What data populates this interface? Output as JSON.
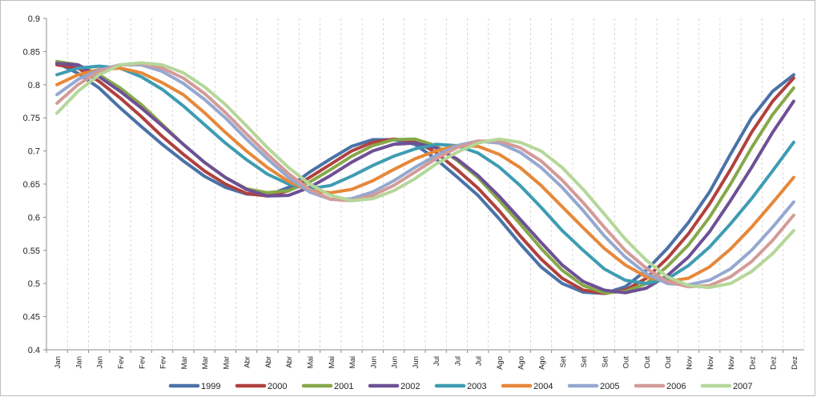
{
  "chart_data": {
    "type": "line",
    "title": "",
    "xlabel": "",
    "ylabel": "",
    "ylim": [
      0.4,
      0.9
    ],
    "yticks": [
      "0.4",
      "0.45",
      "0.5",
      "0.55",
      "0.6",
      "0.65",
      "0.7",
      "0.75",
      "0.8",
      "0.85",
      "0.9"
    ],
    "grid": "vertical dashed",
    "legend_position": "bottom",
    "categories": [
      "Jan",
      "Jan",
      "Jan",
      "Fev",
      "Fev",
      "Fev",
      "Mar",
      "Mar",
      "Mar",
      "Abr",
      "Abr",
      "Abr",
      "Mai",
      "Mai",
      "Mai",
      "Jun",
      "Jun",
      "Jun",
      "Jul",
      "Jul",
      "Jul",
      "Ago",
      "Ago",
      "Ago",
      "Set",
      "Set",
      "Set",
      "Out",
      "Out",
      "Out",
      "Nov",
      "Nov",
      "Nov",
      "Dez",
      "Dez",
      "Dez"
    ],
    "series": [
      {
        "name": "1999",
        "color": "#4a72a8",
        "values": [
          0.833,
          0.817,
          0.795,
          0.765,
          0.737,
          0.71,
          0.685,
          0.662,
          0.645,
          0.635,
          0.633,
          0.645,
          0.668,
          0.688,
          0.707,
          0.717,
          0.717,
          0.71,
          0.688,
          0.661,
          0.633,
          0.598,
          0.56,
          0.525,
          0.5,
          0.487,
          0.485,
          0.495,
          0.52,
          0.553,
          0.592,
          0.638,
          0.695,
          0.75,
          0.79,
          0.815
        ]
      },
      {
        "name": "2000",
        "color": "#b0413e",
        "values": [
          0.83,
          0.825,
          0.805,
          0.78,
          0.752,
          0.722,
          0.695,
          0.67,
          0.65,
          0.636,
          0.632,
          0.64,
          0.66,
          0.68,
          0.7,
          0.713,
          0.718,
          0.715,
          0.698,
          0.672,
          0.644,
          0.61,
          0.572,
          0.537,
          0.508,
          0.49,
          0.485,
          0.49,
          0.508,
          0.538,
          0.575,
          0.62,
          0.672,
          0.728,
          0.775,
          0.81
        ]
      },
      {
        "name": "2001",
        "color": "#86a84a",
        "values": [
          0.835,
          0.83,
          0.815,
          0.795,
          0.77,
          0.74,
          0.71,
          0.683,
          0.66,
          0.643,
          0.637,
          0.64,
          0.653,
          0.672,
          0.692,
          0.708,
          0.717,
          0.718,
          0.708,
          0.686,
          0.66,
          0.626,
          0.59,
          0.553,
          0.52,
          0.497,
          0.486,
          0.488,
          0.5,
          0.526,
          0.558,
          0.6,
          0.65,
          0.705,
          0.755,
          0.795
        ]
      },
      {
        "name": "2002",
        "color": "#6e5095",
        "values": [
          0.832,
          0.83,
          0.812,
          0.79,
          0.765,
          0.738,
          0.71,
          0.683,
          0.66,
          0.642,
          0.632,
          0.633,
          0.645,
          0.663,
          0.683,
          0.7,
          0.71,
          0.712,
          0.705,
          0.688,
          0.663,
          0.632,
          0.597,
          0.562,
          0.528,
          0.503,
          0.49,
          0.486,
          0.493,
          0.512,
          0.54,
          0.578,
          0.625,
          0.675,
          0.728,
          0.775
        ]
      },
      {
        "name": "2003",
        "color": "#3e9cb2",
        "values": [
          0.815,
          0.825,
          0.828,
          0.825,
          0.812,
          0.793,
          0.768,
          0.74,
          0.712,
          0.687,
          0.665,
          0.65,
          0.643,
          0.648,
          0.662,
          0.678,
          0.692,
          0.703,
          0.71,
          0.708,
          0.697,
          0.676,
          0.648,
          0.615,
          0.58,
          0.55,
          0.522,
          0.505,
          0.5,
          0.507,
          0.527,
          0.555,
          0.59,
          0.628,
          0.67,
          0.713
        ]
      },
      {
        "name": "2004",
        "color": "#e6883a",
        "values": [
          0.8,
          0.815,
          0.823,
          0.825,
          0.818,
          0.803,
          0.785,
          0.758,
          0.728,
          0.7,
          0.675,
          0.654,
          0.64,
          0.637,
          0.642,
          0.655,
          0.672,
          0.688,
          0.7,
          0.708,
          0.707,
          0.695,
          0.675,
          0.648,
          0.616,
          0.584,
          0.553,
          0.528,
          0.51,
          0.503,
          0.508,
          0.525,
          0.552,
          0.585,
          0.622,
          0.66
        ]
      },
      {
        "name": "2005",
        "color": "#95a8d0",
        "values": [
          0.785,
          0.808,
          0.822,
          0.83,
          0.83,
          0.82,
          0.802,
          0.778,
          0.75,
          0.718,
          0.688,
          0.66,
          0.638,
          0.627,
          0.628,
          0.638,
          0.655,
          0.675,
          0.693,
          0.708,
          0.715,
          0.712,
          0.698,
          0.675,
          0.645,
          0.61,
          0.572,
          0.54,
          0.515,
          0.5,
          0.498,
          0.505,
          0.522,
          0.55,
          0.585,
          0.623
        ]
      },
      {
        "name": "2006",
        "color": "#d39b97",
        "values": [
          0.772,
          0.8,
          0.82,
          0.83,
          0.832,
          0.825,
          0.81,
          0.787,
          0.758,
          0.726,
          0.695,
          0.666,
          0.642,
          0.627,
          0.625,
          0.633,
          0.648,
          0.668,
          0.688,
          0.705,
          0.715,
          0.715,
          0.705,
          0.685,
          0.656,
          0.622,
          0.585,
          0.55,
          0.523,
          0.503,
          0.495,
          0.497,
          0.51,
          0.533,
          0.565,
          0.603
        ]
      },
      {
        "name": "2007",
        "color": "#b5d79a",
        "values": [
          0.757,
          0.79,
          0.815,
          0.83,
          0.833,
          0.83,
          0.818,
          0.797,
          0.77,
          0.738,
          0.705,
          0.675,
          0.65,
          0.633,
          0.625,
          0.628,
          0.64,
          0.658,
          0.68,
          0.698,
          0.712,
          0.718,
          0.713,
          0.7,
          0.675,
          0.642,
          0.605,
          0.567,
          0.535,
          0.51,
          0.497,
          0.494,
          0.5,
          0.518,
          0.545,
          0.58
        ]
      }
    ]
  }
}
